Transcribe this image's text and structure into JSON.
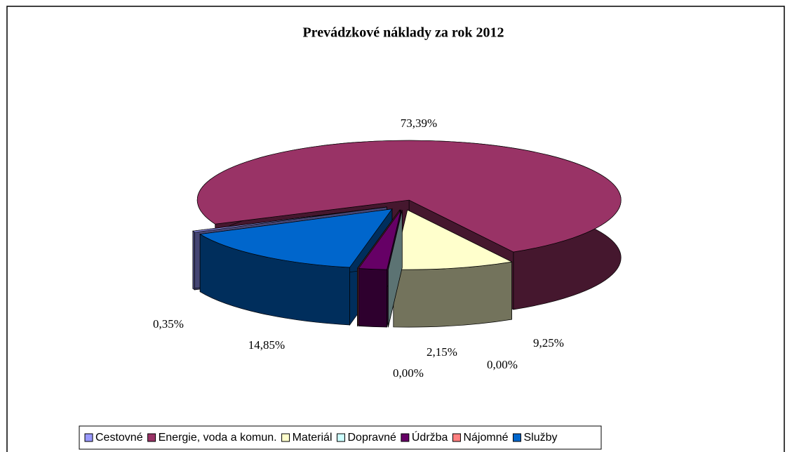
{
  "chart_data": {
    "type": "pie",
    "title": "Prevádzkové náklady za rok 2012",
    "categories": [
      "Cestovné",
      "Energie, voda a komun.",
      "Materiál",
      "Dopravné",
      "Údržba",
      "Nájomné",
      "Služby"
    ],
    "values": [
      0.35,
      73.39,
      9.25,
      0.0,
      2.15,
      0.0,
      14.85
    ],
    "value_labels": [
      "0,35%",
      "73,39%",
      "9,25%",
      "0,00%",
      "2,15%",
      "0,00%",
      "14,85%"
    ],
    "colors": [
      "#9999ff",
      "#993366",
      "#ffffcc",
      "#ccffff",
      "#660066",
      "#ff8080",
      "#0066cc"
    ],
    "legend": "bottom"
  }
}
